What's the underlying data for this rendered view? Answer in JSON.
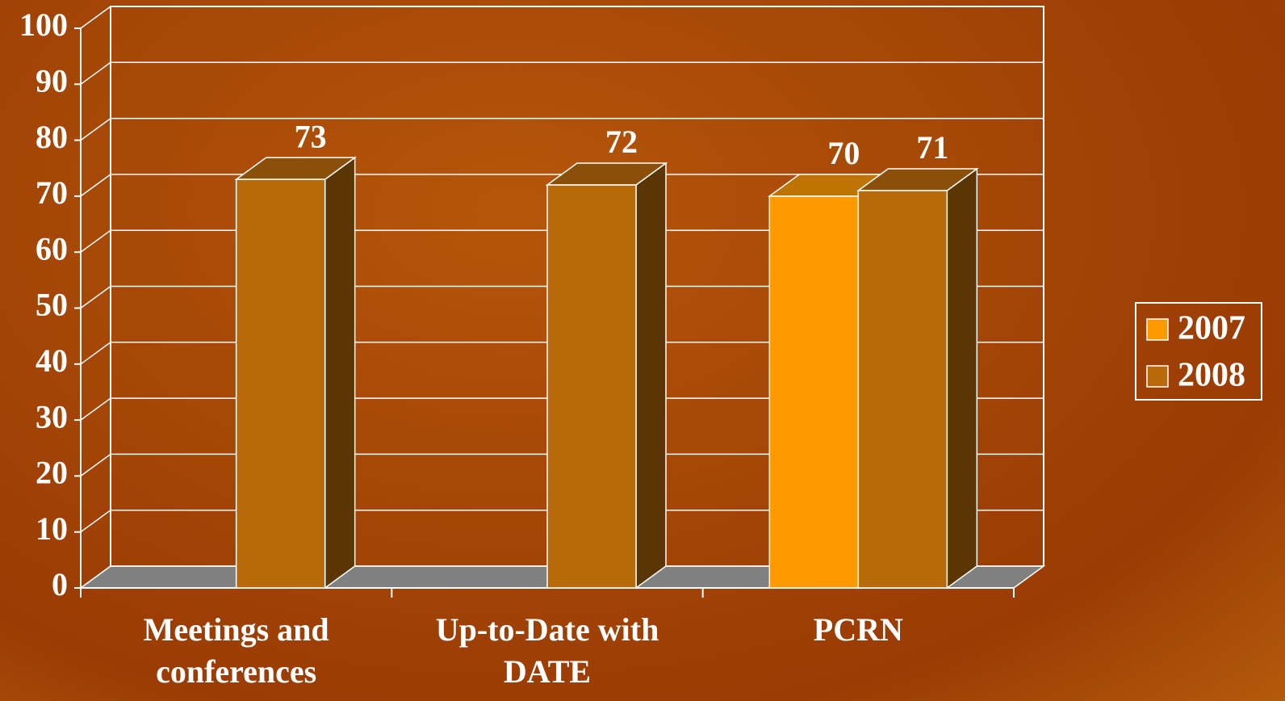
{
  "chart_data": {
    "type": "bar3d",
    "categories": [
      "Meetings and conferences",
      "Up-to-Date with DATE",
      "PCRN"
    ],
    "series": [
      {
        "name": "2007",
        "color": "#ff9900",
        "values": [
          null,
          null,
          70
        ]
      },
      {
        "name": "2008",
        "color": "#b8690a",
        "values": [
          73,
          72,
          71
        ]
      }
    ],
    "ylim": [
      0,
      100
    ],
    "yticks": [
      0,
      10,
      20,
      30,
      40,
      50,
      60,
      70,
      80,
      90,
      100
    ],
    "grid": true,
    "legend": "right"
  }
}
